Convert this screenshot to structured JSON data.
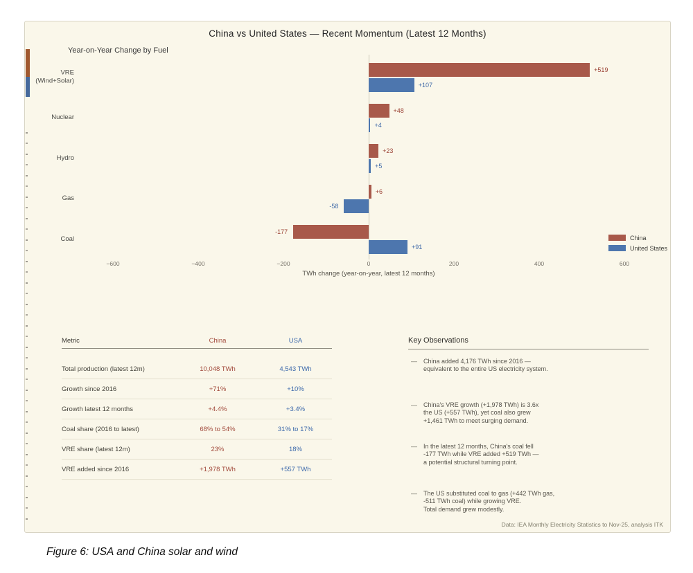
{
  "figure": {
    "title": "China vs United States — Recent Momentum (Latest 12 Months)",
    "subtitle": "Year-on-Year Change by Fuel",
    "source": "Data: IEA Monthly Electricity Statistics to Nov-25, analysis ITK",
    "caption": "Figure 6: USA and China solar and wind"
  },
  "chart_data": {
    "type": "bar",
    "orientation": "horizontal",
    "categories": [
      "VRE\n(Wind+Solar)",
      "Nuclear",
      "Hydro",
      "Gas",
      "Coal"
    ],
    "series": [
      {
        "name": "China",
        "color": "#a8594a",
        "label_color": "#9c4437",
        "values": [
          519,
          48,
          23,
          6,
          -177
        ]
      },
      {
        "name": "United States",
        "color": "#4d76ae",
        "label_color": "#3f69a8",
        "values": [
          107,
          4,
          5,
          -58,
          91
        ]
      }
    ],
    "value_labels": [
      [
        "+519",
        "+48",
        "+23",
        "+6",
        "-177"
      ],
      [
        "+107",
        "+4",
        "+5",
        "-58",
        "+91"
      ]
    ],
    "xlabel": "TWh change (year-on-year, latest 12 months)",
    "xlim": [
      -700,
      700
    ],
    "xticks": [
      -600,
      -400,
      -200,
      0,
      200,
      400,
      600
    ],
    "grid": "zero-line-only",
    "legend_position": "right"
  },
  "table": {
    "headers": {
      "metric": "Metric",
      "china": "China",
      "usa": "USA"
    },
    "rows": [
      {
        "metric": "Total production (latest 12m)",
        "china": "10,048 TWh",
        "usa": "4,543 TWh"
      },
      {
        "metric": "Growth since 2016",
        "china": "+71%",
        "usa": "+10%"
      },
      {
        "metric": "Growth latest 12 months",
        "china": "+4.4%",
        "usa": "+3.4%"
      },
      {
        "metric": "Coal share (2016 to latest)",
        "china": "68% to 54%",
        "usa": "31% to 17%"
      },
      {
        "metric": "VRE share (latest 12m)",
        "china": "23%",
        "usa": "18%"
      },
      {
        "metric": "VRE added since 2016",
        "china": "+1,978 TWh",
        "usa": "+557 TWh"
      }
    ]
  },
  "observations": {
    "heading": "Key Observations",
    "bullet": "—",
    "items": [
      "China added 4,176 TWh since 2016 —\nequivalent to the entire US electricity system.",
      "China's VRE growth (+1,978 TWh) is 3.6x\nthe US (+557 TWh), yet coal also grew\n+1,461 TWh to meet surging demand.",
      "In the latest 12 months, China's coal fell\n-177 TWh while VRE added +519 TWh —\na potential structural turning point.",
      "The US substituted coal to gas (+442 TWh gas,\n-511 TWh coal) while growing VRE.\nTotal demand grew modestly."
    ]
  },
  "colors": {
    "card_background": "#faf7ea",
    "china": "#a8594a",
    "usa": "#4d76ae"
  }
}
